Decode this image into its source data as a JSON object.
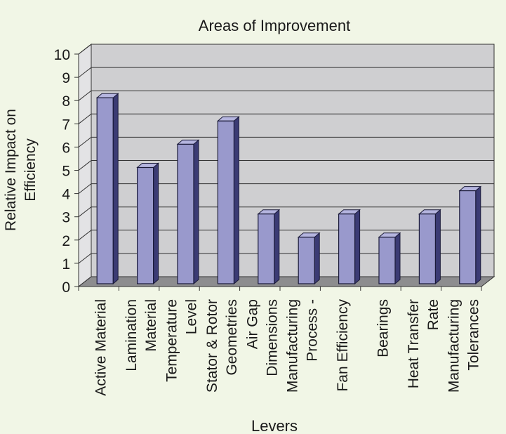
{
  "chart_data": {
    "type": "bar",
    "title": "Areas of Improvement",
    "xlabel": "Levers",
    "ylabel": "Relative Impact on Efficiency",
    "ylim": [
      0,
      10
    ],
    "yticks": [
      "0",
      "1",
      "2",
      "3",
      "4",
      "5",
      "6",
      "7",
      "8",
      "9",
      "10"
    ],
    "grid": true,
    "style": "3d",
    "categories": [
      [
        "Active Material"
      ],
      [
        "Lamination",
        "Material"
      ],
      [
        "Temperature",
        "Level"
      ],
      [
        "Stator & Rotor",
        "Geometries"
      ],
      [
        "Air Gap",
        "Dimensions"
      ],
      [
        "Manufacturing",
        "Process -"
      ],
      [
        "Fan Efficiency"
      ],
      [
        "Bearings"
      ],
      [
        "Heat Transfer",
        "Rate"
      ],
      [
        "Manufacturing",
        "Tolerances"
      ]
    ],
    "values": [
      8,
      5,
      6,
      7,
      3,
      2,
      3,
      2,
      3,
      4
    ],
    "colors": {
      "background": "#f1f6e6",
      "plot_wall": "#cfcfd1",
      "floor": "#8d8d8f",
      "bar_front": "#9999cc",
      "bar_top": "#b5b5df",
      "bar_side": "#3b3b74",
      "bar_outline": "#1b1b3a",
      "grid": "#333333"
    }
  }
}
